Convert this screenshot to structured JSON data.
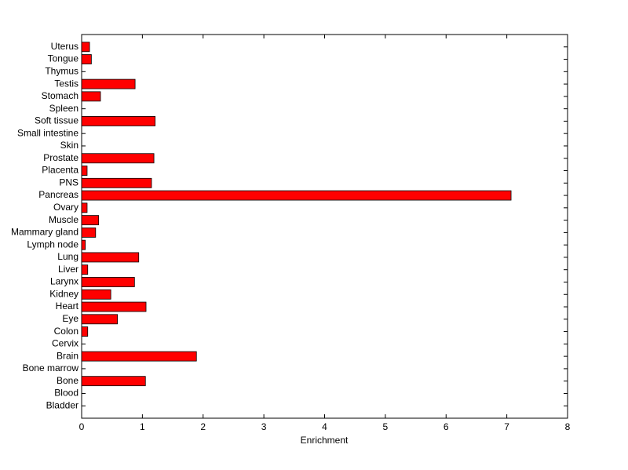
{
  "chart_data": {
    "type": "bar",
    "orientation": "horizontal",
    "x_label": "Enrichment",
    "categories": [
      "Bladder",
      "Blood",
      "Bone",
      "Bone marrow",
      "Brain",
      "Cervix",
      "Colon",
      "Eye",
      "Heart",
      "Kidney",
      "Larynx",
      "Liver",
      "Lung",
      "Lymph node",
      "Mammary gland",
      "Muscle",
      "Ovary",
      "Pancreas",
      "PNS",
      "Placenta",
      "Prostate",
      "Skin",
      "Small intestine",
      "Soft tissue",
      "Spleen",
      "Stomach",
      "Testis",
      "Thymus",
      "Tongue",
      "Uterus"
    ],
    "values": [
      0,
      0,
      1.05,
      0,
      1.89,
      0,
      0.1,
      0.59,
      1.06,
      0.48,
      0.87,
      0.1,
      0.94,
      0.06,
      0.23,
      0.28,
      0.09,
      7.07,
      1.15,
      0.09,
      1.19,
      0,
      0,
      1.21,
      0,
      0.31,
      0.88,
      0,
      0.16,
      0.13
    ],
    "color": "#ff0000",
    "xlim": [
      0,
      8
    ],
    "xticks": [
      0,
      1,
      2,
      3,
      4,
      5,
      6,
      7,
      8
    ]
  }
}
